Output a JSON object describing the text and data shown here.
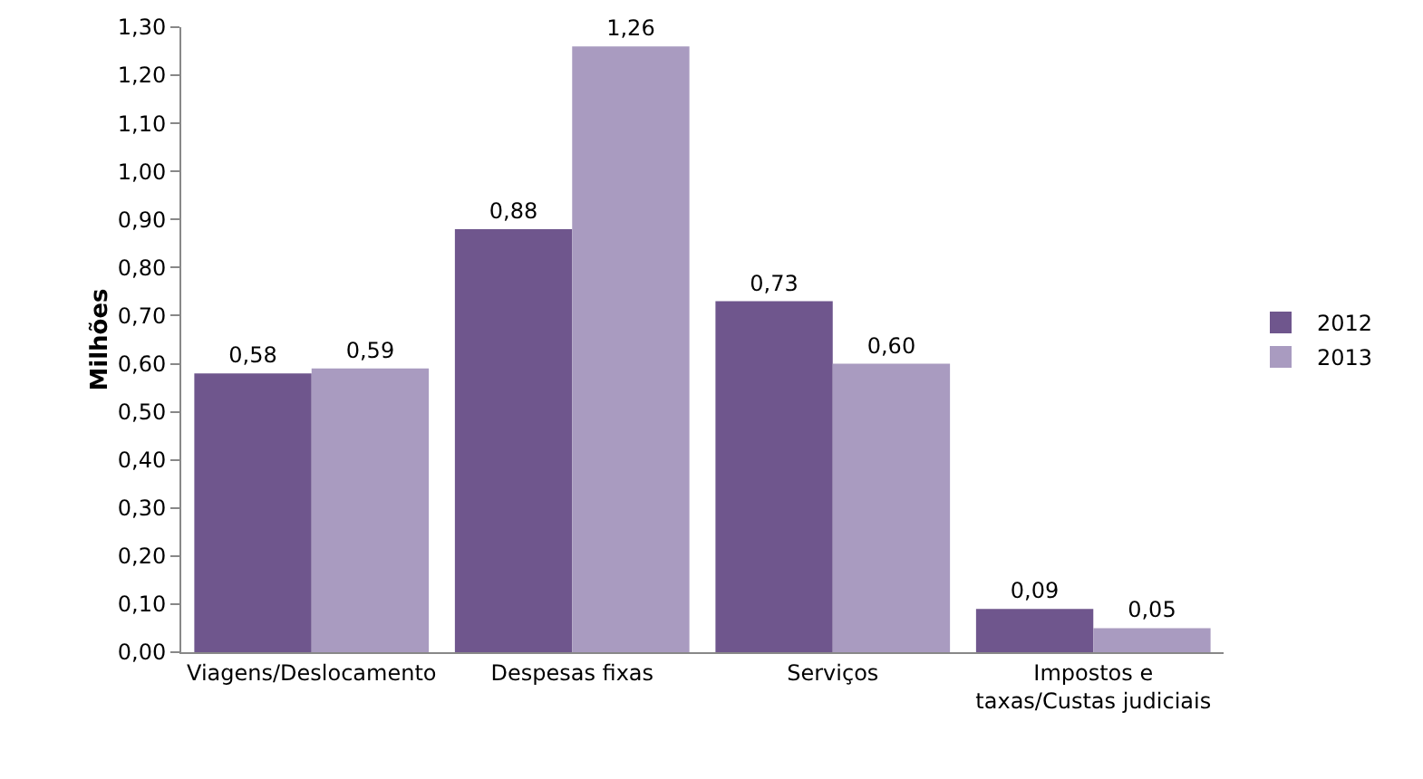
{
  "chart_data": {
    "type": "bar",
    "ylabel": "Milhões",
    "categories": [
      "Viagens/Deslocamento",
      "Despesas fixas",
      "Serviços",
      "Impostos e taxas/Custas judiciais"
    ],
    "series": [
      {
        "name": "2012",
        "color": "#6f568d",
        "values": [
          0.58,
          0.88,
          0.73,
          0.09
        ],
        "value_labels": [
          "0,58",
          "0,88",
          "0,73",
          "0,09"
        ]
      },
      {
        "name": "2013",
        "color": "#a99bc0",
        "values": [
          0.59,
          1.26,
          0.6,
          0.05
        ],
        "value_labels": [
          "0,59",
          "1,26",
          "0,60",
          "0,05"
        ]
      }
    ],
    "ylim": [
      0,
      1.3
    ],
    "yticks": [
      {
        "value": 0,
        "label": "0,00"
      },
      {
        "value": 0.1,
        "label": "0,10"
      },
      {
        "value": 0.2,
        "label": "0,20"
      },
      {
        "value": 0.3,
        "label": "0,30"
      },
      {
        "value": 0.4,
        "label": "0,40"
      },
      {
        "value": 0.5,
        "label": "0,50"
      },
      {
        "value": 0.6,
        "label": "0,60"
      },
      {
        "value": 0.7,
        "label": "0,70"
      },
      {
        "value": 0.8,
        "label": "0,80"
      },
      {
        "value": 0.9,
        "label": "0,90"
      },
      {
        "value": 1.0,
        "label": "1,00"
      },
      {
        "value": 1.1,
        "label": "1,10"
      },
      {
        "value": 1.2,
        "label": "1,20"
      },
      {
        "value": 1.3,
        "label": "1,30"
      }
    ],
    "grid": false,
    "legend": "right"
  }
}
